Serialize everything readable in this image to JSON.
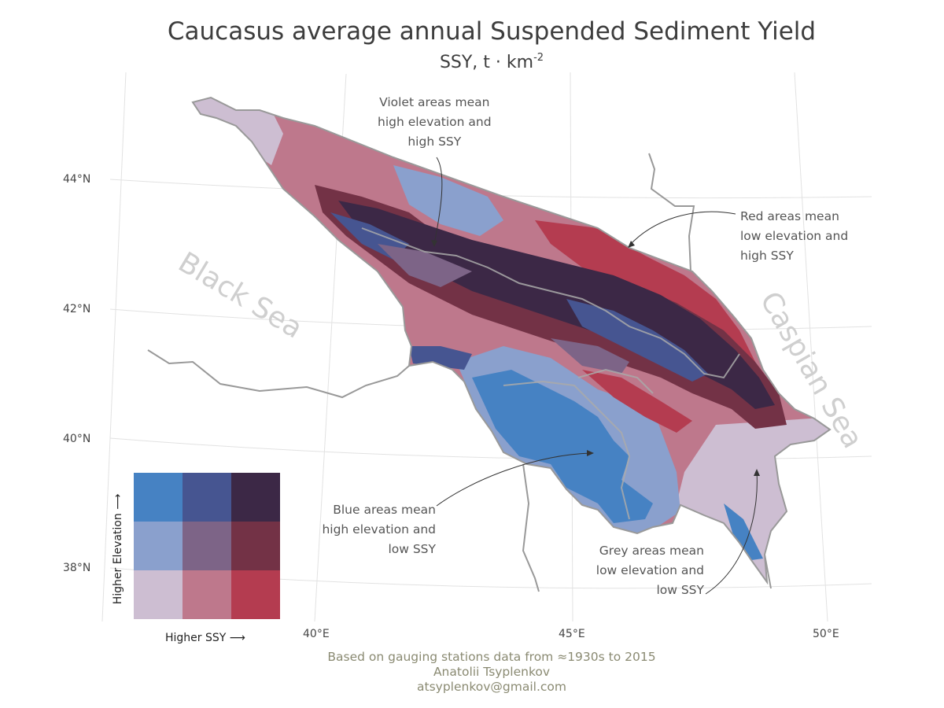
{
  "header": {
    "title": "Caucasus average annual Suspended Sediment Yield",
    "subtitle_main": "SSY, t · km",
    "subtitle_sup": "-2"
  },
  "axes": {
    "latitudes": [
      "44°N",
      "42°N",
      "40°N",
      "38°N"
    ],
    "longitudes": [
      "40°E",
      "45°E",
      "50°E"
    ]
  },
  "seas": {
    "black": "Black Sea",
    "caspian": "Caspian Sea"
  },
  "annotations": {
    "violet": [
      "Violet areas mean",
      "high elevation and",
      "high SSY"
    ],
    "red": [
      "Red areas mean",
      "low elevation and",
      "high SSY"
    ],
    "blue": [
      "Blue areas mean",
      "high elevation and",
      "low SSY"
    ],
    "grey": [
      "Grey areas mean",
      "low elevation and",
      "low SSY"
    ]
  },
  "legend": {
    "x_label": "Higher SSY ⟶",
    "y_label": "Higher Elevation ⟶",
    "grid": [
      [
        "#4682c3",
        "#465591",
        "#3c2846"
      ],
      [
        "#8aa0cd",
        "#7d6487",
        "#733246"
      ],
      [
        "#cdbed2",
        "#be788c",
        "#b43c50"
      ]
    ]
  },
  "caption": {
    "line1": "Based on gauging stations data from ≈1930s to 2015",
    "line2": "Anatolii Tsyplenkov",
    "line3": "atsyplenkov@gmail.com"
  },
  "colors": {
    "grey": "#cdbed2",
    "pink": "#be788c",
    "red": "#b43c50",
    "light_blue": "#8aa0cd",
    "mauve": "#7d6487",
    "wine": "#733246",
    "blue": "#4682c3",
    "slate": "#465591",
    "violet": "#3c2846",
    "border": "#999999",
    "graticule": "#dddddd"
  }
}
